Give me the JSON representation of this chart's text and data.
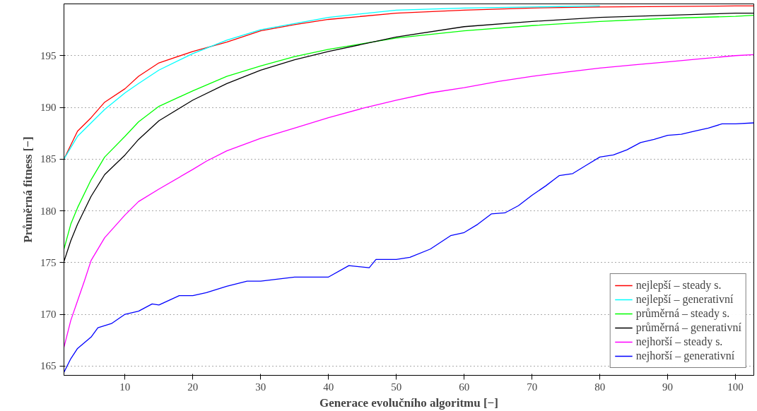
{
  "chart_data": {
    "type": "line",
    "xlabel": "Generace evolučního algoritmu [−]",
    "ylabel": "Průměrná fitness [−]",
    "xlim": [
      1,
      102.7
    ],
    "ylim": [
      164.1,
      200
    ],
    "xticks": [
      10,
      20,
      30,
      40,
      50,
      60,
      70,
      80,
      90,
      100
    ],
    "yticks": [
      165,
      170,
      175,
      180,
      185,
      190,
      195
    ],
    "grid": "y",
    "legend": "bottom right",
    "line_style": "solid",
    "marker": "none",
    "series": [
      {
        "name": "nejlepší – steady s.",
        "color": "#ff0000",
        "x": [
          1,
          3,
          5,
          7,
          10,
          12,
          15,
          20,
          25,
          30,
          35,
          40,
          50,
          60,
          70,
          80,
          100,
          102.7
        ],
        "values": [
          185.0,
          187.7,
          189.0,
          190.5,
          191.8,
          193.0,
          194.3,
          195.4,
          196.3,
          197.4,
          198.0,
          198.5,
          199.1,
          199.4,
          199.6,
          199.7,
          199.8,
          199.8
        ]
      },
      {
        "name": "nejlepší – generativní",
        "color": "#00ffff",
        "x": [
          1,
          3,
          5,
          7,
          10,
          12,
          15,
          20,
          25,
          30,
          35,
          40,
          50,
          60,
          70,
          80
        ],
        "values": [
          185.0,
          187.2,
          188.5,
          189.8,
          191.4,
          192.3,
          193.6,
          195.2,
          196.5,
          197.5,
          198.1,
          198.7,
          199.4,
          199.6,
          199.7,
          199.8
        ]
      },
      {
        "name": "průměrná – steady s.",
        "color": "#00ff00",
        "x": [
          1,
          2,
          3,
          5,
          7,
          10,
          12,
          15,
          20,
          25,
          30,
          35,
          40,
          50,
          60,
          70,
          80,
          90,
          100,
          102.7
        ],
        "values": [
          176.3,
          178.7,
          180.3,
          183.0,
          185.2,
          187.2,
          188.6,
          190.1,
          191.6,
          193.0,
          194.0,
          194.9,
          195.6,
          196.7,
          197.4,
          197.9,
          198.3,
          198.6,
          198.8,
          198.9
        ]
      },
      {
        "name": "průměrná – generativní",
        "color": "#000000",
        "x": [
          1,
          2,
          3,
          5,
          7,
          10,
          12,
          15,
          20,
          25,
          30,
          35,
          40,
          50,
          60,
          70,
          80,
          90,
          100,
          102.7
        ],
        "values": [
          175.1,
          177.1,
          178.7,
          181.4,
          183.5,
          185.4,
          186.9,
          188.7,
          190.7,
          192.3,
          193.6,
          194.6,
          195.4,
          196.8,
          197.8,
          198.3,
          198.7,
          198.9,
          199.1,
          199.1
        ]
      },
      {
        "name": "nejhorší – steady s.",
        "color": "#ff00ff",
        "x": [
          1,
          2,
          3,
          4,
          5,
          7,
          10,
          12,
          15,
          20,
          22,
          25,
          30,
          35,
          40,
          45,
          50,
          55,
          60,
          65,
          70,
          75,
          80,
          85,
          90,
          95,
          100,
          102.7
        ],
        "values": [
          166.8,
          169.4,
          171.3,
          173.2,
          175.2,
          177.4,
          179.6,
          180.9,
          182.1,
          184.0,
          184.8,
          185.8,
          187.0,
          188.0,
          189.0,
          189.9,
          190.7,
          191.4,
          191.9,
          192.5,
          193.0,
          193.4,
          193.8,
          194.1,
          194.4,
          194.7,
          195.0,
          195.1
        ]
      },
      {
        "name": "nejhorší – generativní",
        "color": "#0000ff",
        "x": [
          1,
          2,
          3,
          5,
          6,
          8,
          10,
          12,
          14,
          15,
          18,
          20,
          22,
          25,
          28,
          30,
          35,
          40,
          43,
          46,
          47,
          50,
          52,
          55,
          58,
          60,
          62,
          64,
          66,
          68,
          70,
          72,
          74,
          76,
          78,
          80,
          82,
          84,
          86,
          88,
          90,
          92,
          94,
          96,
          98,
          100,
          102.7
        ],
        "values": [
          164.4,
          165.7,
          166.7,
          167.8,
          168.7,
          169.1,
          170.0,
          170.3,
          171.0,
          170.9,
          171.8,
          171.8,
          172.1,
          172.7,
          173.2,
          173.2,
          173.6,
          173.6,
          174.7,
          174.5,
          175.3,
          175.3,
          175.5,
          176.3,
          177.6,
          177.9,
          178.7,
          179.7,
          179.8,
          180.5,
          181.5,
          182.4,
          183.4,
          183.6,
          184.4,
          185.2,
          185.4,
          185.9,
          186.6,
          186.9,
          187.3,
          187.4,
          187.7,
          188.0,
          188.4,
          188.4,
          188.5
        ]
      }
    ]
  }
}
